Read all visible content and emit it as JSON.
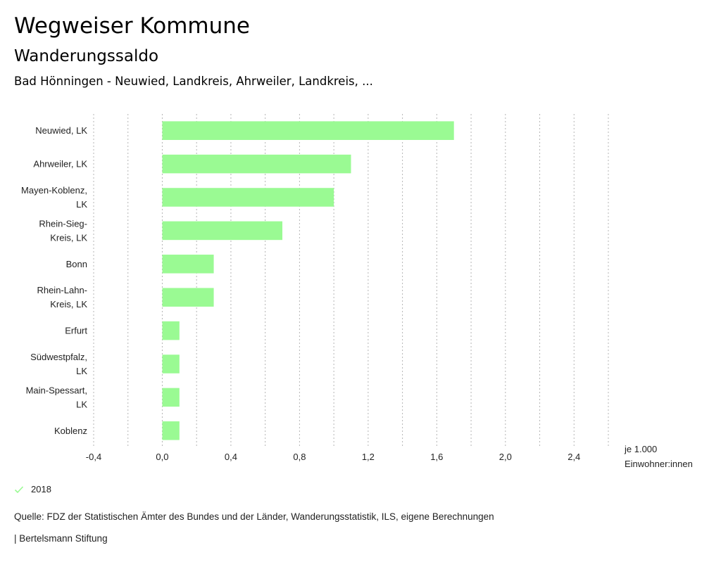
{
  "header": {
    "title": "Wegweiser Kommune",
    "subtitle": "Wanderungssaldo",
    "region": "Bad Hönningen - Neuwied, Landkreis, Ahrweiler, Landkreis, ..."
  },
  "chart_data": {
    "type": "bar",
    "orientation": "horizontal",
    "title": "Wanderungssaldo",
    "categories": [
      [
        "Neuwied, LK"
      ],
      [
        "Ahrweiler, LK"
      ],
      [
        "Mayen-Koblenz,",
        "LK"
      ],
      [
        "Rhein-Sieg-",
        "Kreis, LK"
      ],
      [
        "Bonn"
      ],
      [
        "Rhein-Lahn-",
        "Kreis, LK"
      ],
      [
        "Erfurt"
      ],
      [
        "Südwestpfalz,",
        "LK"
      ],
      [
        "Main-Spessart,",
        "LK"
      ],
      [
        "Koblenz"
      ]
    ],
    "series": [
      {
        "name": "2018",
        "color": "#9afa93",
        "values": [
          1.7,
          1.1,
          1.0,
          0.7,
          0.3,
          0.3,
          0.1,
          0.1,
          0.1,
          0.1
        ]
      }
    ],
    "xlabel": [
      "je 1.000",
      "Einwohner:innen"
    ],
    "ylabel": "",
    "xlim": [
      -0.4,
      2.6
    ],
    "xticks": [
      -0.4,
      0.0,
      0.4,
      0.8,
      1.2,
      1.6,
      2.0,
      2.4
    ],
    "xtick_labels": [
      "-0,4",
      "0,0",
      "0,4",
      "0,8",
      "1,2",
      "1,6",
      "2,0",
      "2,4"
    ],
    "gridlines": [
      -0.4,
      -0.2,
      0.0,
      0.2,
      0.4,
      0.6,
      0.8,
      1.0,
      1.2,
      1.4,
      1.6,
      1.8,
      2.0,
      2.2,
      2.4,
      2.6
    ],
    "grid": true,
    "grid_style": "dotted vertical",
    "legend": [
      "2018"
    ],
    "legend_position": "bottom-left"
  },
  "legend": {
    "label": "2018",
    "icon": "check-icon",
    "color": "#9afa93"
  },
  "footer": {
    "source": "Quelle: FDZ der Statistischen Ämter des Bundes und der Länder, Wanderungsstatistik, ILS, eigene Berechnungen",
    "credit": "| Bertelsmann Stiftung"
  }
}
